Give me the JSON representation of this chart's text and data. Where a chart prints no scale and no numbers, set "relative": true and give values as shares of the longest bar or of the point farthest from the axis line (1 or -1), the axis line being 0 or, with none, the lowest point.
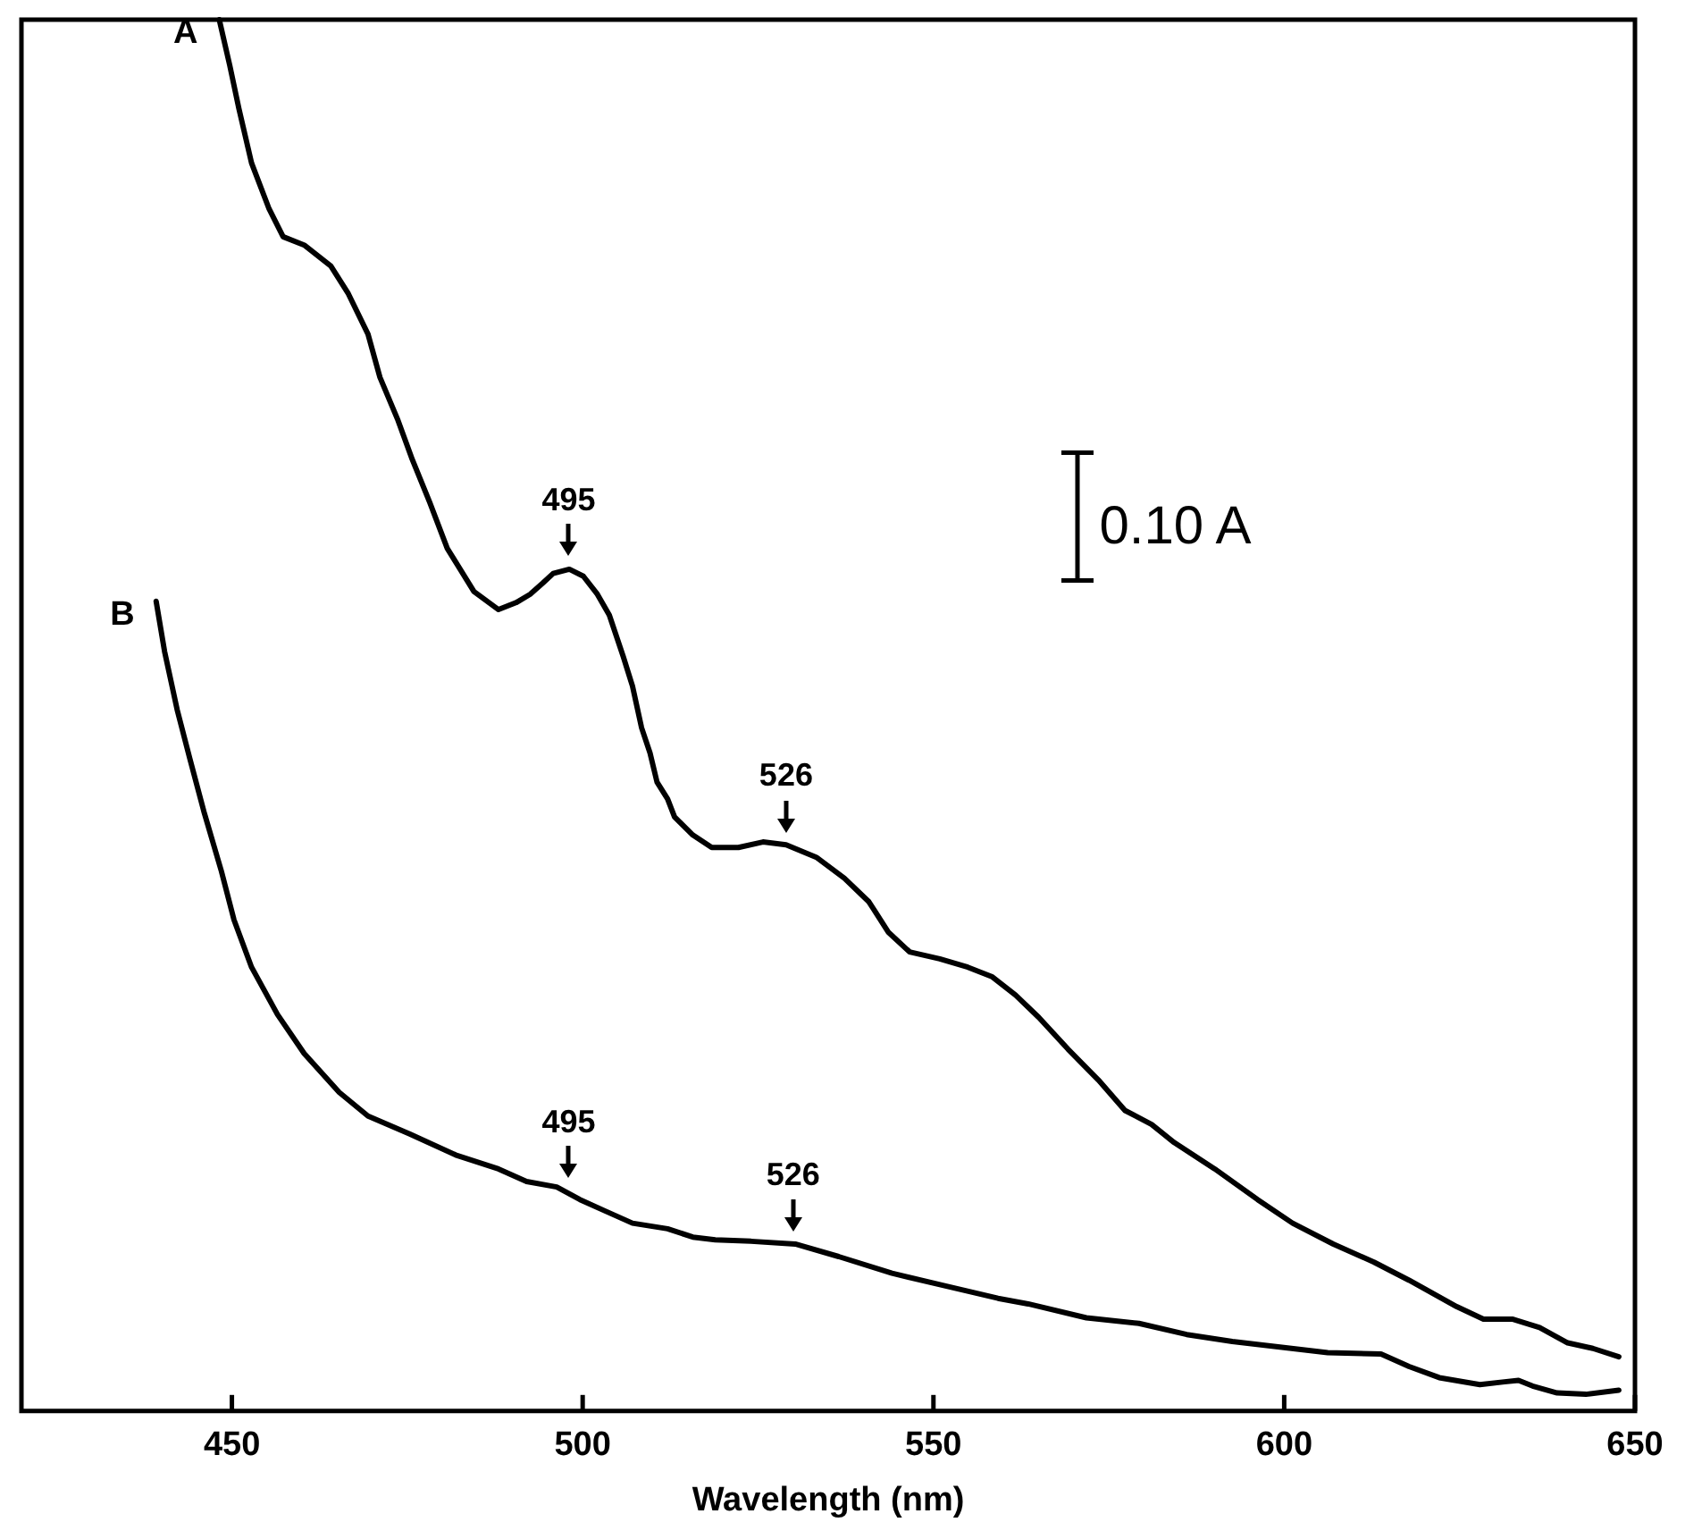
{
  "chart_data": {
    "type": "line",
    "xlabel": "Wavelength (nm)",
    "relative": true,
    "xlim": [
      420,
      650
    ],
    "xticks": [
      450,
      500,
      550,
      600,
      650
    ],
    "legend": false,
    "marker": "none",
    "line_style": "solid",
    "series": [
      {
        "name": "A",
        "color": "#000000",
        "x": [
          448.2,
          449.7,
          451.0,
          452.8,
          455.3,
          457.3,
          460.3,
          464.1,
          466.6,
          469.4,
          471.1,
          473.6,
          475.7,
          478.2,
          480.7,
          484.5,
          488.0,
          490.5,
          492.5,
          494.3,
          495.8,
          498.1,
          500.1,
          502.1,
          503.8,
          505.8,
          507.1,
          508.4,
          509.6,
          510.6,
          512.1,
          513.1,
          515.7,
          518.4,
          522.2,
          525.7,
          529.0,
          533.3,
          537.3,
          540.8,
          543.6,
          546.6,
          550.9,
          554.9,
          558.4,
          561.7,
          565.0,
          569.2,
          573.5,
          577.3,
          581.1,
          584.3,
          590.1,
          596.2,
          601.2,
          607.0,
          612.8,
          617.8,
          624.6,
          628.4,
          632.6,
          636.4,
          640.4,
          644.0,
          647.7
        ],
        "values": [
          1.0,
          0.967,
          0.936,
          0.897,
          0.864,
          0.844,
          0.838,
          0.823,
          0.803,
          0.774,
          0.743,
          0.713,
          0.684,
          0.653,
          0.62,
          0.589,
          0.576,
          0.581,
          0.587,
          0.595,
          0.602,
          0.605,
          0.6,
          0.587,
          0.572,
          0.542,
          0.521,
          0.491,
          0.473,
          0.452,
          0.44,
          0.427,
          0.414,
          0.405,
          0.405,
          0.409,
          0.407,
          0.398,
          0.383,
          0.366,
          0.344,
          0.33,
          0.325,
          0.319,
          0.312,
          0.299,
          0.283,
          0.26,
          0.238,
          0.216,
          0.206,
          0.193,
          0.174,
          0.152,
          0.135,
          0.12,
          0.107,
          0.094,
          0.075,
          0.066,
          0.066,
          0.06,
          0.049,
          0.045,
          0.039
        ]
      },
      {
        "name": "B",
        "color": "#000000",
        "x": [
          439.2,
          440.4,
          442.2,
          444.0,
          446.0,
          448.5,
          450.3,
          452.8,
          456.5,
          460.3,
          465.3,
          469.4,
          475.4,
          481.9,
          488.0,
          492.0,
          496.3,
          499.6,
          503.1,
          507.1,
          512.1,
          515.7,
          518.9,
          524.0,
          530.3,
          536.5,
          544.1,
          551.6,
          559.2,
          563.5,
          571.8,
          579.3,
          586.1,
          592.6,
          599.4,
          606.2,
          613.8,
          617.8,
          622.1,
          627.9,
          631.4,
          633.4,
          635.4,
          638.9,
          643.0,
          647.7
        ],
        "values": [
          0.582,
          0.546,
          0.504,
          0.469,
          0.431,
          0.388,
          0.353,
          0.319,
          0.285,
          0.257,
          0.229,
          0.212,
          0.199,
          0.184,
          0.174,
          0.165,
          0.161,
          0.152,
          0.144,
          0.135,
          0.131,
          0.125,
          0.123,
          0.122,
          0.12,
          0.111,
          0.099,
          0.09,
          0.081,
          0.077,
          0.067,
          0.063,
          0.055,
          0.05,
          0.046,
          0.042,
          0.041,
          0.032,
          0.024,
          0.019,
          0.021,
          0.022,
          0.018,
          0.013,
          0.012,
          0.015
        ]
      }
    ],
    "annotations": [
      {
        "text": "495",
        "x": 498,
        "y": 0.605
      },
      {
        "text": "526",
        "x": 529,
        "y": 0.407
      },
      {
        "text": "495",
        "x": 498,
        "y": 0.158
      },
      {
        "text": "526",
        "x": 530,
        "y": 0.12
      },
      "0.10 A"
    ]
  }
}
